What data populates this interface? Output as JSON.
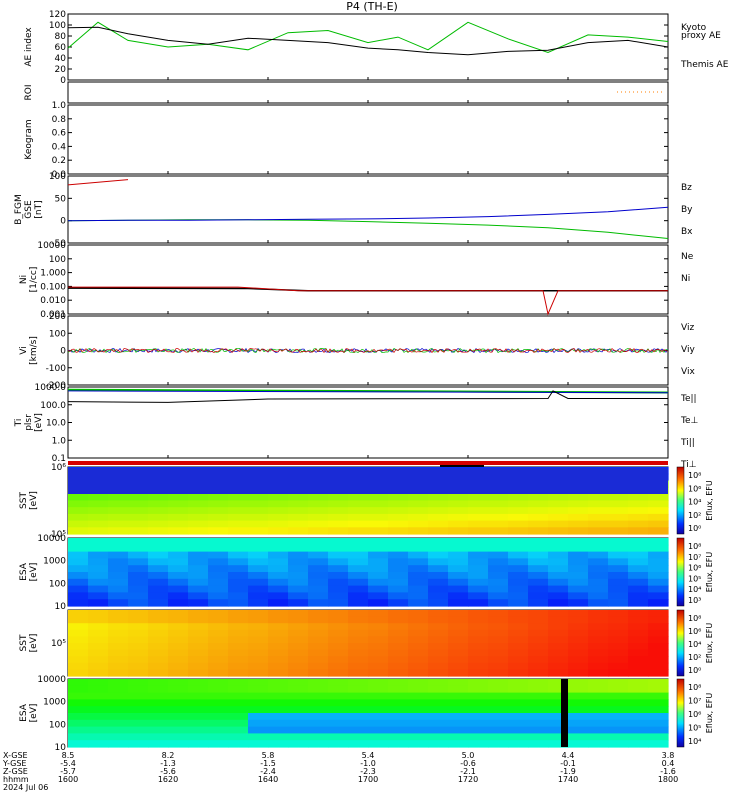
{
  "title": "P4 (TH-E)",
  "panels": [
    {
      "key": "ae",
      "ylabel": [
        "AE index"
      ],
      "yticks": [
        "120",
        "100",
        "80",
        "60",
        "40",
        "20",
        "0"
      ],
      "right": [
        {
          "text": "Kyoto",
          "color": "#00bb00"
        },
        {
          "text": "proxy AE",
          "color": "#00bb00"
        },
        {
          "text": "Themis AE",
          "color": "#000000"
        }
      ]
    },
    {
      "key": "roi",
      "ylabel": [
        "ROI"
      ],
      "yticks": [],
      "right": []
    },
    {
      "key": "keo",
      "ylabel": [
        "Keogram"
      ],
      "yticks": [
        "1.0",
        "0.8",
        "0.6",
        "0.4",
        "0.2",
        "0.0"
      ],
      "right": []
    },
    {
      "key": "bfgm",
      "ylabel": [
        "B_FGM",
        "GSE",
        "[nT]"
      ],
      "yticks": [
        "100",
        "50",
        "0",
        "-50"
      ],
      "right": [
        {
          "text": "Bz",
          "color": "#cc0000"
        },
        {
          "text": "By",
          "color": "#00bb00"
        },
        {
          "text": "Bx",
          "color": "#0000cc"
        }
      ]
    },
    {
      "key": "ni",
      "ylabel": [
        "Ni",
        "[1/cc]"
      ],
      "yticks": [
        "10000",
        "100",
        "1.000",
        "0.100",
        "0.010",
        "0.001"
      ],
      "right": [
        {
          "text": "Ne",
          "color": "#cc0000"
        },
        {
          "text": "Ni",
          "color": "#000000"
        }
      ]
    },
    {
      "key": "vi",
      "ylabel": [
        "Vi",
        "[km/s]"
      ],
      "yticks": [
        "200",
        "100",
        "0",
        "-100",
        "-200"
      ],
      "right": [
        {
          "text": "Viz",
          "color": "#cc0000"
        },
        {
          "text": "Viy",
          "color": "#00bb00"
        },
        {
          "text": "Vix",
          "color": "#0000cc"
        }
      ]
    },
    {
      "key": "ti",
      "ylabel": [
        "Ti",
        "plsr",
        "[eV]"
      ],
      "yticks": [
        "1000.0",
        "100.0",
        "10.0",
        "1.0",
        "0.1"
      ],
      "right": [
        {
          "text": "Te||",
          "color": "#000000"
        },
        {
          "text": "Te⊥",
          "color": "#cc0000"
        },
        {
          "text": "Ti||",
          "color": "#00bb00"
        },
        {
          "text": "Ti⊥",
          "color": "#0000cc"
        }
      ]
    },
    {
      "key": "sste",
      "ylabel": [
        "SST",
        "[eV]"
      ],
      "yticks": [
        "10⁶",
        "10⁵"
      ],
      "right": []
    },
    {
      "key": "esae",
      "ylabel": [
        "ESA",
        "[eV]"
      ],
      "yticks": [
        "10000",
        "1000",
        "100",
        "10"
      ],
      "right": []
    },
    {
      "key": "ssti",
      "ylabel": [
        "SST",
        "[eV]"
      ],
      "yticks": [
        "10⁵"
      ],
      "right": []
    },
    {
      "key": "esai",
      "ylabel": [
        "ESA",
        "[eV]"
      ],
      "yticks": [
        "10000",
        "1000",
        "100",
        "10"
      ],
      "right": []
    }
  ],
  "colorbars": [
    {
      "ticks": [
        "10⁸",
        "10⁶",
        "10⁴",
        "10²",
        "10⁰"
      ],
      "label": "Eflux, EFU"
    },
    {
      "ticks": [
        "10⁸",
        "10⁷",
        "10⁶",
        "10⁵",
        "10⁴",
        "10³"
      ],
      "label": "Eflux, EFU"
    },
    {
      "ticks": [
        "10⁸",
        "10⁶",
        "10⁴",
        "10²",
        "10⁰"
      ],
      "label": "Eflux, EFU"
    },
    {
      "ticks": [
        "10⁸",
        "10⁷",
        "10⁶",
        "10⁵",
        "10⁴"
      ],
      "label": "Eflux, EFU"
    }
  ],
  "xaxis": {
    "row_labels": [
      "X-GSE",
      "Y-GSE",
      "Z-GSE",
      "hhmm",
      "2024 Jul 06"
    ],
    "columns": [
      {
        "x": "8.5",
        "y": "-5.4",
        "z": "-5.7",
        "t": "1600"
      },
      {
        "x": "8.2",
        "y": "-1.3",
        "z": "-5.6",
        "t": "1620"
      },
      {
        "x": "5.8",
        "y": "-1.5",
        "z": "-2.4",
        "t": "1640"
      },
      {
        "x": "5.4",
        "y": "-1.0",
        "z": "-2.3",
        "t": "1700"
      },
      {
        "x": "5.0",
        "y": "-0.6",
        "z": "-2.1",
        "t": "1720"
      },
      {
        "x": "4.4",
        "y": "-0.1",
        "z": "-1.9",
        "t": "1740"
      },
      {
        "x": "3.8",
        "y": "0.4",
        "z": "-1.6",
        "t": "1800"
      }
    ]
  },
  "chart_data": {
    "type": "line",
    "title": "P4 (TH-E)",
    "xlabel": "hhmm",
    "x_ticks": [
      "1600",
      "1620",
      "1640",
      "1700",
      "1720",
      "1740",
      "1800"
    ],
    "ae": {
      "ylim": [
        0,
        120
      ],
      "x": [
        1600,
        1606,
        1612,
        1620,
        1628,
        1636,
        1644,
        1652,
        1700,
        1706,
        1712,
        1720,
        1728,
        1736,
        1744,
        1752,
        1800
      ],
      "series": [
        {
          "name": "Kyoto",
          "color": "#00bb00",
          "values": [
            58,
            105,
            72,
            60,
            65,
            55,
            86,
            90,
            68,
            78,
            55,
            105,
            75,
            50,
            82,
            78,
            70
          ]
        },
        {
          "name": "Themis AE",
          "color": "#000000",
          "values": [
            95,
            96,
            84,
            72,
            65,
            76,
            72,
            68,
            58,
            55,
            50,
            46,
            52,
            54,
            68,
            72,
            60
          ]
        }
      ]
    },
    "bfgm": {
      "ylim": [
        -50,
        100
      ],
      "x": [
        1600,
        1612,
        1624,
        1636,
        1648,
        1700,
        1712,
        1724,
        1736,
        1748,
        1800
      ],
      "series": [
        {
          "name": "Bz",
          "color": "#cc0000",
          "values": [
            80,
            92,
            null,
            null,
            null,
            null,
            null,
            null,
            null,
            null,
            null
          ]
        },
        {
          "name": "By",
          "color": "#00bb00",
          "values": [
            0,
            1,
            2,
            2,
            1,
            -2,
            -6,
            -10,
            -16,
            -26,
            -40
          ]
        },
        {
          "name": "Bx",
          "color": "#0000cc",
          "values": [
            0,
            1,
            1,
            2,
            3,
            4,
            6,
            9,
            14,
            20,
            30
          ]
        }
      ]
    },
    "ni": {
      "ylim_log": [
        -3,
        5
      ],
      "Ne_level": 1.0,
      "Ni_level": 0.5,
      "dip_time": 1736,
      "dip_value": 0.001
    },
    "vi": {
      "ylim": [
        -250,
        250
      ]
    },
    "ti": {
      "ylim_log": [
        -1,
        3
      ],
      "Te_par": 700,
      "Ti_par": 600,
      "Te_perp": 150
    }
  }
}
